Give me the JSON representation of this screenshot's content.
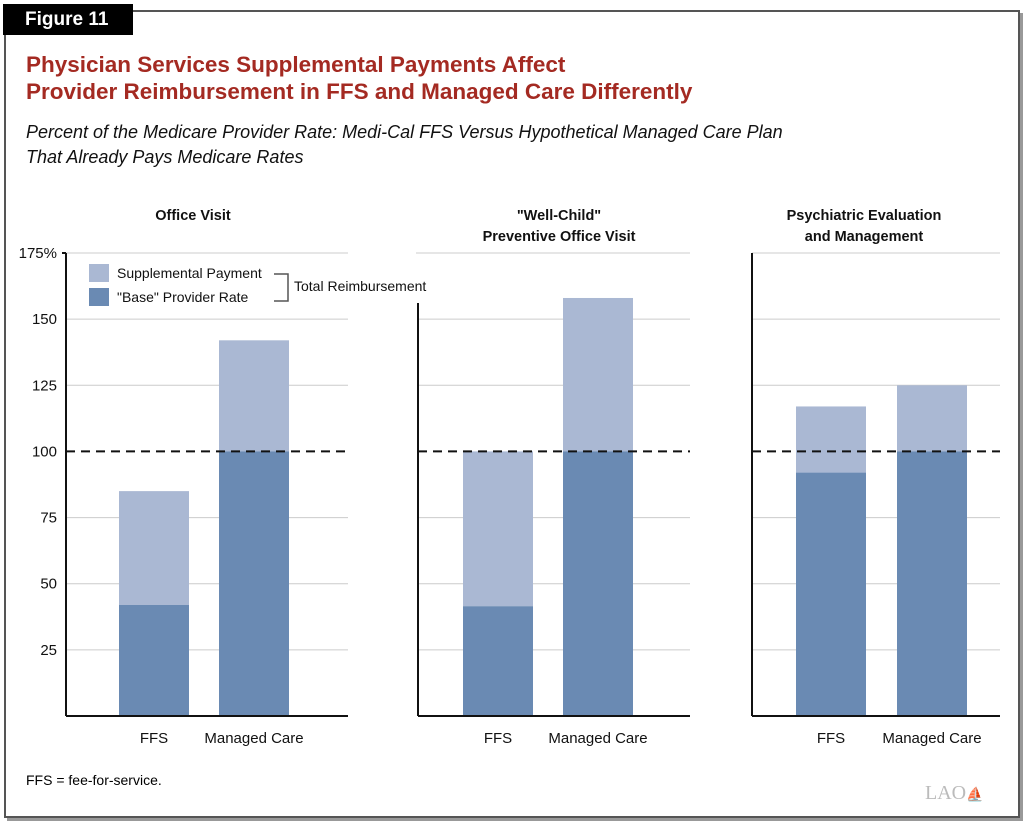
{
  "figure_label": "Figure 11",
  "title_line1": "Physician Services Supplemental Payments Affect",
  "title_line2": "Provider Reimbursement in FFS and Managed Care Differently",
  "subtitle_line1": "Percent of the Medicare Provider Rate: Medi-Cal FFS Versus Hypothetical Managed Care Plan",
  "subtitle_line2": "That Already Pays Medicare Rates",
  "footnote": "FFS = fee-for-service.",
  "logo": "LAO",
  "colors": {
    "base": "#6a8ab3",
    "supplemental": "#aab8d3",
    "title": "#a42a22"
  },
  "chart_data": {
    "type": "bar",
    "stacked": true,
    "ylim": [
      0,
      175
    ],
    "yticks": [
      "25",
      "50",
      "75",
      "100",
      "125",
      "150",
      "175%"
    ],
    "reference_line": 100,
    "legend": {
      "items": [
        "Supplemental Payment",
        "\"Base\" Provider Rate"
      ],
      "bracket_label": "Total Reimbursement"
    },
    "panels": [
      {
        "title": [
          "Office Visit"
        ],
        "categories": [
          "FFS",
          "Managed Care"
        ],
        "base": [
          42,
          100
        ],
        "total": [
          85,
          142
        ]
      },
      {
        "title": [
          "\"Well-Child\"",
          "Preventive Office Visit"
        ],
        "categories": [
          "FFS",
          "Managed Care"
        ],
        "base": [
          41.5,
          100
        ],
        "total": [
          100,
          158
        ]
      },
      {
        "title": [
          "Psychiatric Evaluation",
          "and Management"
        ],
        "categories": [
          "FFS",
          "Managed Care"
        ],
        "base": [
          92,
          100
        ],
        "total": [
          117,
          125
        ]
      }
    ]
  }
}
